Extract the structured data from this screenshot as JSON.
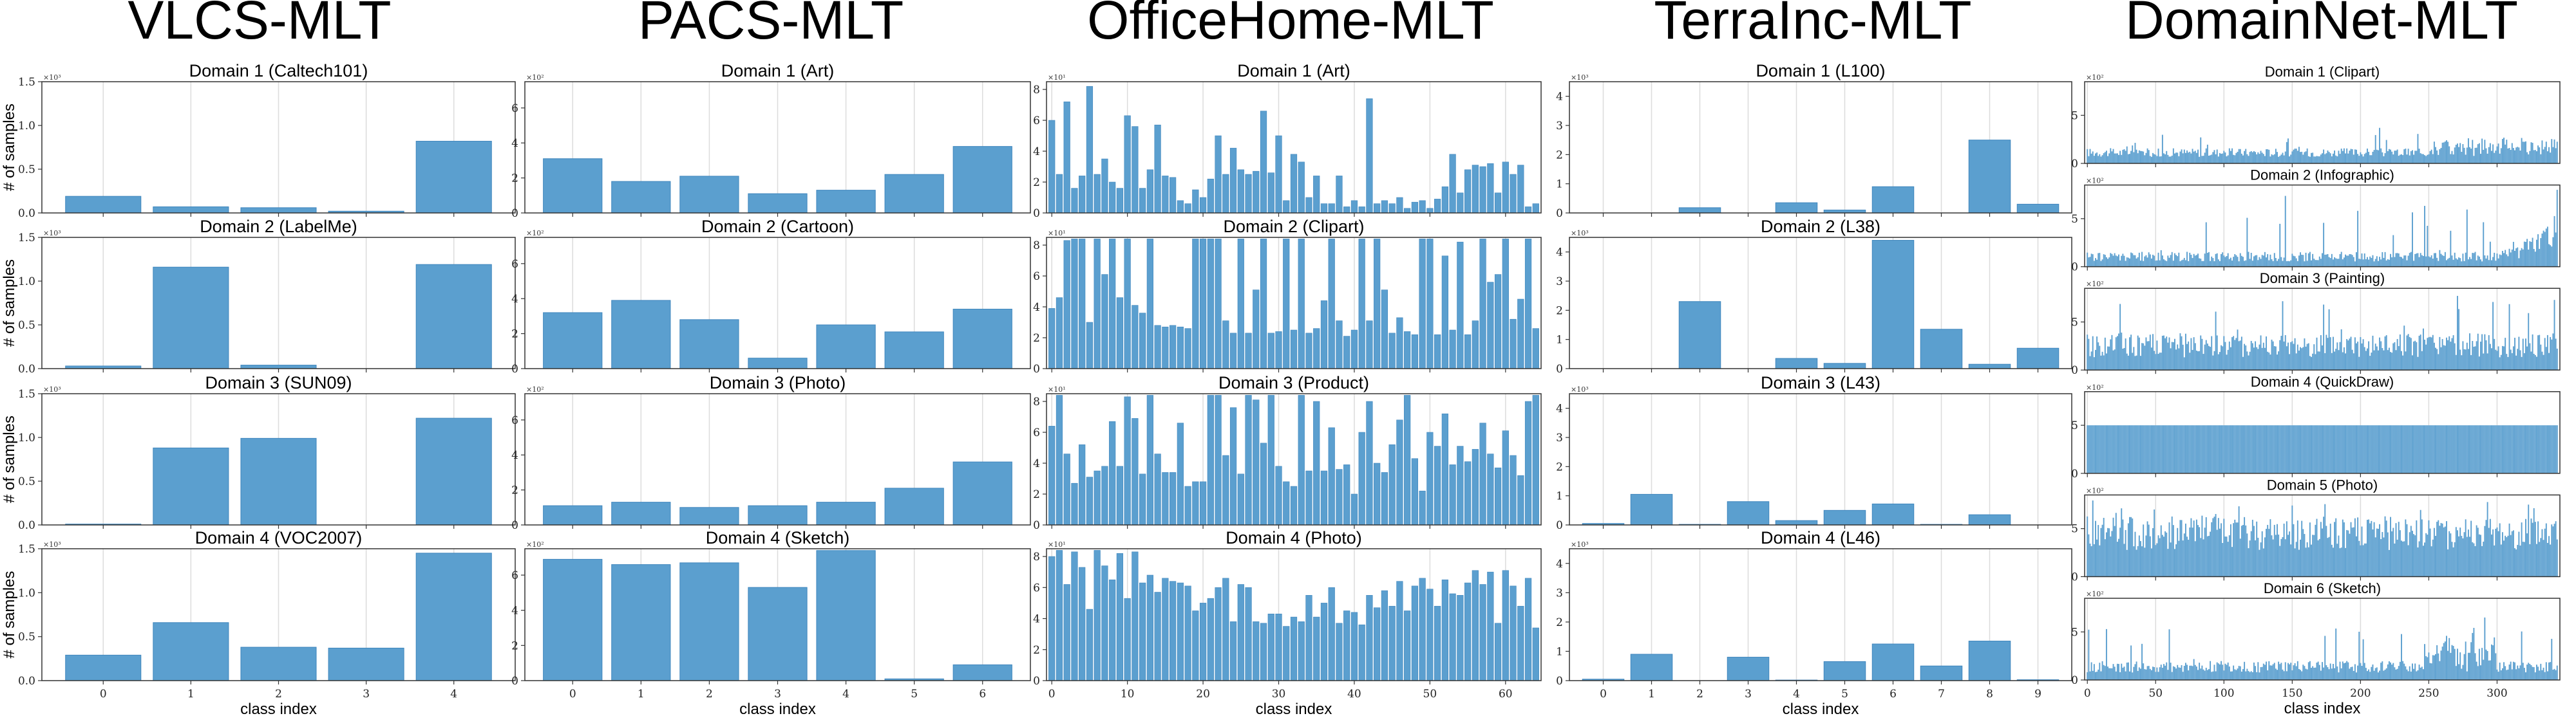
{
  "columns": [
    "VLCS-MLT",
    "PACS-MLT",
    "OfficeHome-MLT",
    "TerraInc-MLT",
    "DomainNet-MLT"
  ],
  "xlabel": "class index",
  "ylabel": "# of samples",
  "colors": {
    "bar": "#5b9fcf",
    "bar_edge": "#3f86bd",
    "grid": "#dcdcdc",
    "axis": "#333333"
  },
  "chart_data": [
    {
      "type": "bar",
      "column": "VLCS-MLT",
      "multiplier": "×10³",
      "ylim": [
        0,
        1.5
      ],
      "yticks": [
        0.0,
        0.5,
        1.0,
        1.5
      ],
      "ytick_labels": [
        "0.0",
        "0.5",
        "1.0",
        "1.5"
      ],
      "xticks": [
        0,
        1,
        2,
        3,
        4
      ],
      "show_ylabel": true,
      "panels": [
        {
          "title": "Domain 1 (Caltech101)",
          "values": [
            0.19,
            0.07,
            0.06,
            0.02,
            0.82
          ]
        },
        {
          "title": "Domain 2 (LabelMe)",
          "values": [
            0.03,
            1.16,
            0.04,
            0.0,
            1.19
          ]
        },
        {
          "title": "Domain 3 (SUN09)",
          "values": [
            0.01,
            0.88,
            0.99,
            0.0,
            1.22
          ]
        },
        {
          "title": "Domain 4 (VOC2007)",
          "values": [
            0.29,
            0.66,
            0.38,
            0.37,
            1.45
          ]
        }
      ]
    },
    {
      "type": "bar",
      "column": "PACS-MLT",
      "multiplier": "×10²",
      "ylim": [
        0,
        7.5
      ],
      "yticks": [
        0,
        2,
        4,
        6
      ],
      "ytick_labels": [
        "0",
        "2",
        "4",
        "6"
      ],
      "xticks": [
        0,
        1,
        2,
        3,
        4,
        5,
        6
      ],
      "panels": [
        {
          "title": "Domain 1 (Art)",
          "values": [
            3.1,
            1.8,
            2.1,
            1.1,
            1.3,
            2.2,
            3.8
          ]
        },
        {
          "title": "Domain 2 (Cartoon)",
          "values": [
            3.2,
            3.9,
            2.8,
            0.6,
            2.5,
            2.1,
            3.4
          ]
        },
        {
          "title": "Domain 3 (Photo)",
          "values": [
            1.1,
            1.3,
            1.0,
            1.1,
            1.3,
            2.1,
            3.6
          ]
        },
        {
          "title": "Domain 4 (Sketch)",
          "values": [
            6.9,
            6.6,
            6.7,
            5.3,
            7.4,
            0.1,
            0.9
          ]
        }
      ]
    },
    {
      "type": "bar",
      "column": "OfficeHome-MLT",
      "multiplier": "×10¹",
      "ylim": [
        0,
        8.5
      ],
      "yticks": [
        0,
        2,
        4,
        6,
        8
      ],
      "ytick_labels": [
        "0",
        "2",
        "4",
        "6",
        "8"
      ],
      "xticks": [
        0,
        10,
        20,
        30,
        40,
        50,
        60
      ],
      "panels": [
        {
          "title": "Domain 1 (Art)",
          "values": [
            6.0,
            2.5,
            7.2,
            1.6,
            2.4,
            8.2,
            2.5,
            3.5,
            2.0,
            1.6,
            6.3,
            5.6,
            1.6,
            2.8,
            5.7,
            2.4,
            2.3,
            0.8,
            0.6,
            1.5,
            1.0,
            2.2,
            5.0,
            2.5,
            4.2,
            2.8,
            2.5,
            2.7,
            6.6,
            2.6,
            5.0,
            0.8,
            3.8,
            3.3,
            1.0,
            2.4,
            0.6,
            0.6,
            2.4,
            0.4,
            0.8,
            0.4,
            7.4,
            0.6,
            0.8,
            0.6,
            1.0,
            0.3,
            0.7,
            0.8,
            0.3,
            0.9,
            1.7,
            3.8,
            1.3,
            2.8,
            3.1,
            3.0,
            3.2,
            1.3,
            3.3,
            2.5,
            3.1,
            0.4,
            0.6
          ]
        },
        {
          "title": "Domain 2 (Clipart)",
          "values": [
            3.9,
            4.6,
            8.3,
            8.4,
            8.4,
            3.0,
            8.4,
            6.1,
            8.4,
            4.6,
            8.4,
            4.1,
            3.6,
            8.4,
            2.8,
            2.7,
            2.8,
            2.7,
            2.6,
            8.4,
            8.4,
            8.4,
            8.4,
            3.1,
            2.3,
            8.4,
            2.3,
            5.1,
            8.4,
            2.3,
            2.4,
            8.4,
            2.5,
            8.4,
            2.3,
            2.6,
            4.4,
            8.4,
            3.1,
            2.1,
            2.5,
            8.4,
            3.1,
            8.4,
            5.1,
            2.3,
            3.3,
            2.4,
            2.2,
            8.4,
            8.4,
            2.2,
            7.3,
            2.5,
            8.2,
            2.2,
            3.1,
            8.4,
            5.6,
            6.1,
            8.4,
            3.2,
            4.5,
            8.4,
            2.6
          ]
        },
        {
          "title": "Domain 3 (Product)",
          "values": [
            6.4,
            8.4,
            4.6,
            2.7,
            5.2,
            3.1,
            3.5,
            3.8,
            6.7,
            3.8,
            8.3,
            6.9,
            3.3,
            8.4,
            4.6,
            3.4,
            3.4,
            6.6,
            2.5,
            2.8,
            2.8,
            8.4,
            8.4,
            4.5,
            7.6,
            3.3,
            8.4,
            8.1,
            5.3,
            8.4,
            3.8,
            2.8,
            2.5,
            8.4,
            3.5,
            8.0,
            3.5,
            6.3,
            3.6,
            3.9,
            2.0,
            6.0,
            8.0,
            4.0,
            3.4,
            5.2,
            6.8,
            8.4,
            4.3,
            2.2,
            6.0,
            5.1,
            7.2,
            3.9,
            5.1,
            4.1,
            4.9,
            6.6,
            4.6,
            3.7,
            6.1,
            4.5,
            3.2,
            8.0,
            8.4
          ]
        },
        {
          "title": "Domain 4 (Photo)",
          "values": [
            8.0,
            8.4,
            6.2,
            8.3,
            7.3,
            4.6,
            8.4,
            7.4,
            6.5,
            8.2,
            5.3,
            8.3,
            6.3,
            6.8,
            5.7,
            6.6,
            6.4,
            6.3,
            6.1,
            4.5,
            5.0,
            5.3,
            6.0,
            6.6,
            3.8,
            6.2,
            6.0,
            3.8,
            3.7,
            4.3,
            4.3,
            3.5,
            4.1,
            3.8,
            5.5,
            4.1,
            5.0,
            6.0,
            3.7,
            4.5,
            4.4,
            3.6,
            5.5,
            4.7,
            5.8,
            4.8,
            6.4,
            4.5,
            6.1,
            6.6,
            5.9,
            4.8,
            6.5,
            5.6,
            5.5,
            6.3,
            7.1,
            6.2,
            7.0,
            3.7,
            7.1,
            6.1,
            4.8,
            6.6,
            3.4
          ]
        }
      ]
    },
    {
      "type": "bar",
      "column": "TerraInc-MLT",
      "multiplier": "×10³",
      "ylim": [
        0,
        4.5
      ],
      "yticks": [
        0,
        1,
        2,
        3,
        4
      ],
      "ytick_labels": [
        "0",
        "1",
        "2",
        "3",
        "4"
      ],
      "xticks": [
        0,
        1,
        2,
        3,
        4,
        5,
        6,
        7,
        8,
        9
      ],
      "panels": [
        {
          "title": "Domain 1 (L100)",
          "values": [
            0.0,
            0.0,
            0.18,
            0.0,
            0.35,
            0.1,
            0.9,
            0.0,
            2.5,
            0.3
          ]
        },
        {
          "title": "Domain 2 (L38)",
          "values": [
            0.0,
            0.0,
            2.3,
            0.0,
            0.35,
            0.18,
            4.4,
            1.35,
            0.15,
            0.7
          ]
        },
        {
          "title": "Domain 3 (L43)",
          "values": [
            0.05,
            1.05,
            0.02,
            0.8,
            0.15,
            0.5,
            0.72,
            0.02,
            0.35,
            0.0
          ]
        },
        {
          "title": "Domain 4 (L46)",
          "values": [
            0.05,
            0.9,
            0.0,
            0.8,
            0.02,
            0.65,
            1.25,
            0.5,
            1.35,
            0.03
          ]
        }
      ]
    },
    {
      "type": "bar",
      "column": "DomainNet-MLT",
      "multiplier": "×10²",
      "ylim": [
        0,
        8.5
      ],
      "yticks": [
        0,
        5
      ],
      "ytick_labels": [
        "0",
        "5"
      ],
      "xticks": [
        0,
        50,
        100,
        150,
        200,
        250,
        300
      ],
      "n_classes": 345,
      "panels": [
        {
          "title": "Domain 1 (Clipart)",
          "level": 1.0,
          "spread": 0.9,
          "peak": 3.8
        },
        {
          "title": "Domain 2 (Infographic)",
          "level": 0.9,
          "spread": 1.0,
          "peak": 8.0
        },
        {
          "title": "Domain 3 (Painting)",
          "level": 2.2,
          "spread": 2.5,
          "peak": 8.0
        },
        {
          "title": "Domain 4 (QuickDraw)",
          "level": 5.0,
          "spread": 0.0,
          "peak": 5.0
        },
        {
          "title": "Domain 5 (Photo)",
          "level": 4.0,
          "spread": 3.5,
          "peak": 8.4
        },
        {
          "title": "Domain 6 (Sketch)",
          "level": 1.2,
          "spread": 1.2,
          "peak": 6.5
        }
      ]
    }
  ]
}
